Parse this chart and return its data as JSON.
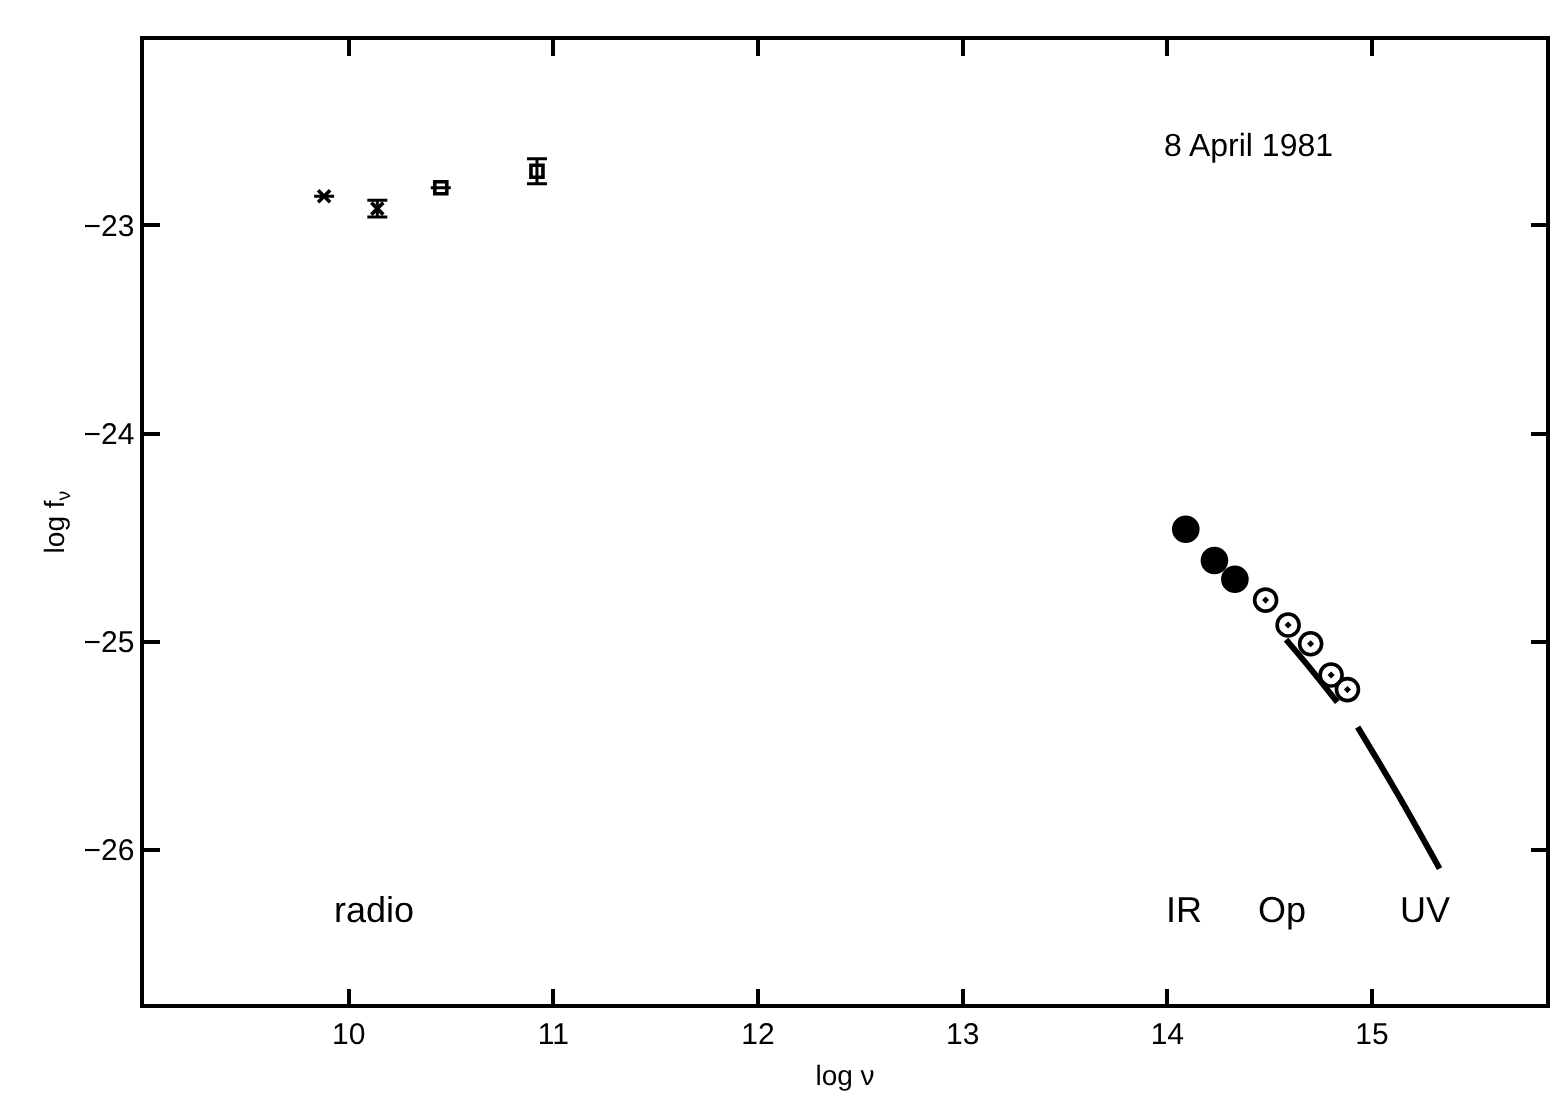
{
  "chart_data": {
    "type": "scatter",
    "xlabel": "log ν",
    "ylabel": "log f$_{ν}$",
    "xlim": [
      9.0,
      15.85
    ],
    "ylim": [
      -26.74,
      -22.11
    ],
    "xticks": [
      10,
      11,
      12,
      13,
      14,
      15
    ],
    "yticks": [
      -23,
      -24,
      -25,
      -26
    ],
    "annotations": [
      "8 April 1981",
      "radio",
      "IR",
      "Op",
      "UV"
    ],
    "series": [
      {
        "marker": "cross",
        "color": "#000000",
        "x": [
          9.88,
          10.14
        ],
        "values": [
          -22.86,
          -22.92
        ],
        "errors": [
          null,
          0.04
        ]
      },
      {
        "marker": "square",
        "color": "#000000",
        "x": [
          10.45,
          10.92
        ],
        "values": [
          -22.82,
          -22.74
        ],
        "errors": [
          null,
          0.06
        ]
      },
      {
        "marker": "circle",
        "color": "#000000",
        "x": [
          14.09,
          14.23,
          14.33
        ],
        "values": [
          -24.46,
          -24.61,
          -24.7
        ]
      },
      {
        "marker": "circle-dot",
        "color": "#000000",
        "x": [
          14.48,
          14.59,
          14.7,
          14.8,
          14.88
        ],
        "values": [
          -24.8,
          -24.92,
          -25.01,
          -25.16,
          -25.23
        ]
      },
      {
        "type": "line",
        "marker": "none",
        "line_style": "solid",
        "color": "#000000",
        "x": [
          14.58,
          14.7,
          14.83
        ],
        "values": [
          -24.99,
          -25.13,
          -25.29
        ]
      },
      {
        "type": "line",
        "marker": "none",
        "line_style": "solid",
        "color": "#000000",
        "x": [
          14.93,
          15.13,
          15.33
        ],
        "values": [
          -25.41,
          -25.74,
          -26.09
        ]
      }
    ]
  }
}
